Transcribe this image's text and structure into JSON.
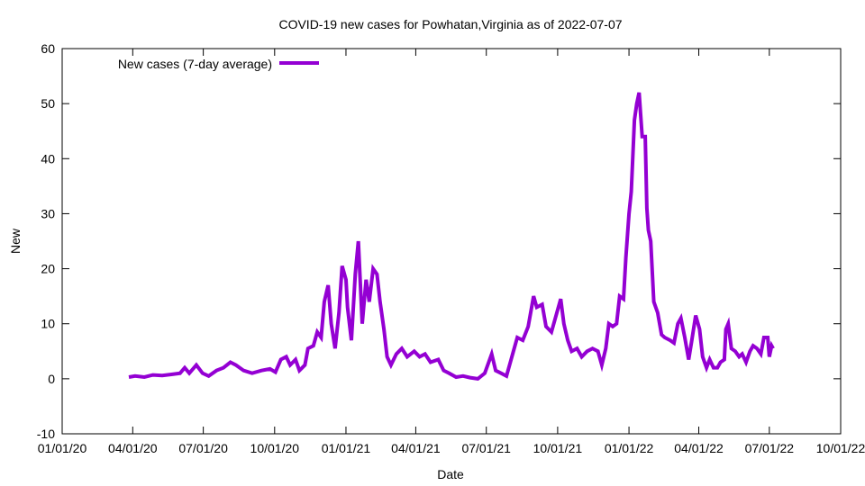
{
  "chart_data": {
    "type": "line",
    "title": "COVID-19 new cases for Powhatan,Virginia as of 2022-07-07",
    "xlabel": "Date",
    "ylabel": "New",
    "x_units": "days since 2020-01-01",
    "xlim": [
      0,
      1004
    ],
    "ylim": [
      -10,
      60
    ],
    "yticks": [
      -10,
      0,
      10,
      20,
      30,
      40,
      50,
      60
    ],
    "xticks": [
      {
        "day": 0,
        "label": "01/01/20"
      },
      {
        "day": 91,
        "label": "04/01/20"
      },
      {
        "day": 182,
        "label": "07/01/20"
      },
      {
        "day": 274,
        "label": "10/01/20"
      },
      {
        "day": 366,
        "label": "01/01/21"
      },
      {
        "day": 456,
        "label": "04/01/21"
      },
      {
        "day": 547,
        "label": "07/01/21"
      },
      {
        "day": 639,
        "label": "10/01/21"
      },
      {
        "day": 731,
        "label": "01/01/22"
      },
      {
        "day": 821,
        "label": "04/01/22"
      },
      {
        "day": 912,
        "label": "07/01/22"
      },
      {
        "day": 1004,
        "label": "10/01/22"
      }
    ],
    "grid": false,
    "legend_position": "top-left",
    "series": [
      {
        "name": "New cases (7-day average)",
        "color": "#9400d3",
        "points": [
          [
            86,
            0.3
          ],
          [
            94,
            0.5
          ],
          [
            106,
            0.3
          ],
          [
            117,
            0.7
          ],
          [
            129,
            0.6
          ],
          [
            141,
            0.8
          ],
          [
            152,
            1.0
          ],
          [
            158,
            2.0
          ],
          [
            164,
            1.0
          ],
          [
            173,
            2.5
          ],
          [
            181,
            1.0
          ],
          [
            189,
            0.5
          ],
          [
            199,
            1.5
          ],
          [
            208,
            2.0
          ],
          [
            217,
            3.0
          ],
          [
            224,
            2.5
          ],
          [
            234,
            1.5
          ],
          [
            245,
            1.0
          ],
          [
            257,
            1.5
          ],
          [
            268,
            1.8
          ],
          [
            275,
            1.2
          ],
          [
            282,
            3.5
          ],
          [
            289,
            4.0
          ],
          [
            294,
            2.5
          ],
          [
            301,
            3.5
          ],
          [
            306,
            1.5
          ],
          [
            313,
            2.5
          ],
          [
            317,
            5.5
          ],
          [
            324,
            6.0
          ],
          [
            329,
            8.5
          ],
          [
            334,
            7.5
          ],
          [
            338,
            14
          ],
          [
            343,
            17
          ],
          [
            347,
            10
          ],
          [
            352,
            5.5
          ],
          [
            357,
            12
          ],
          [
            361,
            20.5
          ],
          [
            366,
            18
          ],
          [
            368,
            13
          ],
          [
            373,
            7
          ],
          [
            378,
            19
          ],
          [
            382,
            25
          ],
          [
            387,
            10
          ],
          [
            392,
            18
          ],
          [
            396,
            14
          ],
          [
            401,
            20
          ],
          [
            406,
            19
          ],
          [
            410,
            14
          ],
          [
            415,
            9
          ],
          [
            419,
            4
          ],
          [
            424,
            2.5
          ],
          [
            431,
            4.5
          ],
          [
            438,
            5.5
          ],
          [
            445,
            4
          ],
          [
            454,
            5
          ],
          [
            461,
            4
          ],
          [
            468,
            4.5
          ],
          [
            475,
            3.0
          ],
          [
            485,
            3.5
          ],
          [
            492,
            1.5
          ],
          [
            499,
            1.0
          ],
          [
            508,
            0.3
          ],
          [
            517,
            0.5
          ],
          [
            526,
            0.2
          ],
          [
            536,
            0.0
          ],
          [
            545,
            1.0
          ],
          [
            554,
            4.5
          ],
          [
            559,
            1.5
          ],
          [
            566,
            1.0
          ],
          [
            573,
            0.5
          ],
          [
            578,
            3
          ],
          [
            582,
            5
          ],
          [
            587,
            7.5
          ],
          [
            594,
            7
          ],
          [
            601,
            9.5
          ],
          [
            608,
            15
          ],
          [
            612,
            13
          ],
          [
            619,
            13.5
          ],
          [
            624,
            9.5
          ],
          [
            631,
            8.5
          ],
          [
            638,
            12
          ],
          [
            643,
            14.5
          ],
          [
            647,
            10
          ],
          [
            652,
            7
          ],
          [
            657,
            5
          ],
          [
            664,
            5.5
          ],
          [
            670,
            4
          ],
          [
            677,
            5
          ],
          [
            684,
            5.5
          ],
          [
            691,
            5
          ],
          [
            696,
            2.5
          ],
          [
            701,
            5.5
          ],
          [
            705,
            10
          ],
          [
            710,
            9.5
          ],
          [
            715,
            10
          ],
          [
            719,
            15
          ],
          [
            724,
            14.5
          ],
          [
            727,
            22
          ],
          [
            731,
            30
          ],
          [
            734,
            34
          ],
          [
            738,
            47
          ],
          [
            741,
            50
          ],
          [
            744,
            52
          ],
          [
            746,
            48
          ],
          [
            748,
            44
          ],
          [
            752,
            44
          ],
          [
            754,
            31
          ],
          [
            756,
            27
          ],
          [
            759,
            25
          ],
          [
            763,
            14
          ],
          [
            768,
            12
          ],
          [
            773,
            8
          ],
          [
            777,
            7.5
          ],
          [
            784,
            7
          ],
          [
            789,
            6.5
          ],
          [
            794,
            10
          ],
          [
            798,
            11
          ],
          [
            803,
            7.5
          ],
          [
            808,
            3.5
          ],
          [
            812,
            7
          ],
          [
            817,
            11.5
          ],
          [
            822,
            9
          ],
          [
            826,
            4
          ],
          [
            831,
            2
          ],
          [
            835,
            3.5
          ],
          [
            840,
            2
          ],
          [
            845,
            2.0
          ],
          [
            849,
            3
          ],
          [
            854,
            3.5
          ],
          [
            856,
            9
          ],
          [
            859,
            10
          ],
          [
            863,
            5.5
          ],
          [
            868,
            5
          ],
          [
            873,
            4
          ],
          [
            877,
            4.5
          ],
          [
            882,
            3
          ],
          [
            887,
            5
          ],
          [
            891,
            6
          ],
          [
            896,
            5.5
          ],
          [
            901,
            4.5
          ],
          [
            905,
            7.5
          ],
          [
            910,
            7.5
          ],
          [
            912,
            4
          ],
          [
            915,
            6
          ],
          [
            917,
            5.5
          ]
        ]
      }
    ]
  }
}
